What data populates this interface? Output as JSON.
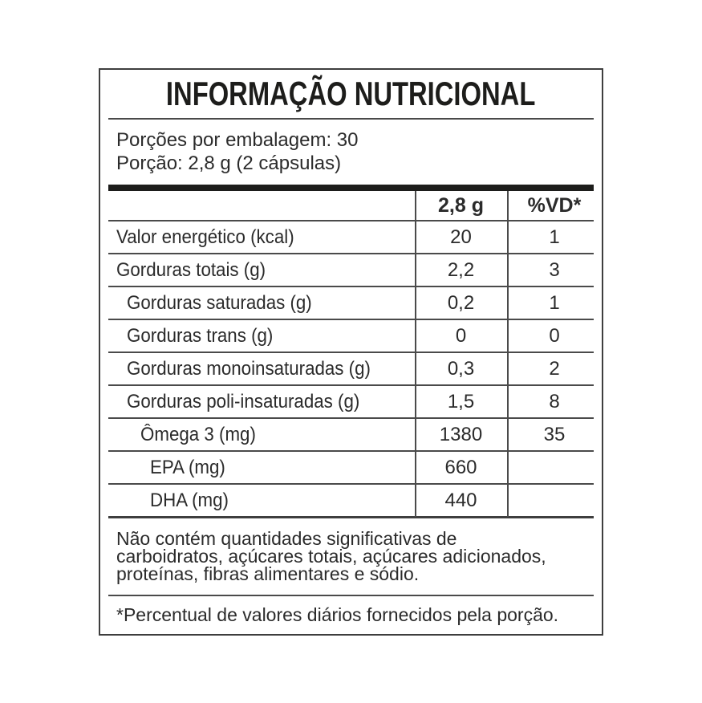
{
  "label": {
    "title": "INFORMAÇÃO NUTRICIONAL",
    "servings": {
      "per_package": "Porções por embalagem: 30",
      "portion": "Porção: 2,8 g (2 cápsulas)"
    },
    "table": {
      "columns": {
        "amount": "2,8 g",
        "daily_value": "%VD*"
      },
      "rows": [
        {
          "name": "Valor energético (kcal)",
          "amount": "20",
          "dv": "1"
        },
        {
          "name": "Gorduras totais (g)",
          "amount": "2,2",
          "dv": "3"
        },
        {
          "name": "Gorduras saturadas (g)",
          "amount": "0,2",
          "dv": "1"
        },
        {
          "name": "Gorduras trans (g)",
          "amount": "0",
          "dv": "0"
        },
        {
          "name": "Gorduras monoinsaturadas (g)",
          "amount": "0,3",
          "dv": "2"
        },
        {
          "name": "Gorduras poli-insaturadas (g)",
          "amount": "1,5",
          "dv": "8"
        },
        {
          "name": "Ômega 3 (mg)",
          "amount": "1380",
          "dv": "35"
        },
        {
          "name": "EPA (mg)",
          "amount": "660",
          "dv": ""
        },
        {
          "name": "DHA (mg)",
          "amount": "440",
          "dv": ""
        }
      ]
    },
    "no_significant_lines": [
      "Não contém quantidades significativas de",
      "carboidratos, açúcares totais, açúcares adicionados,",
      "proteínas, fibras alimentares e sódio."
    ],
    "dv_footnote": "*Percentual de valores diários fornecidos pela porção.",
    "colors": {
      "text": "#2b2b2b",
      "line": "#4a4a4a",
      "heavy_bar": "#1d1d1b",
      "border": "#3e3e3e"
    }
  }
}
